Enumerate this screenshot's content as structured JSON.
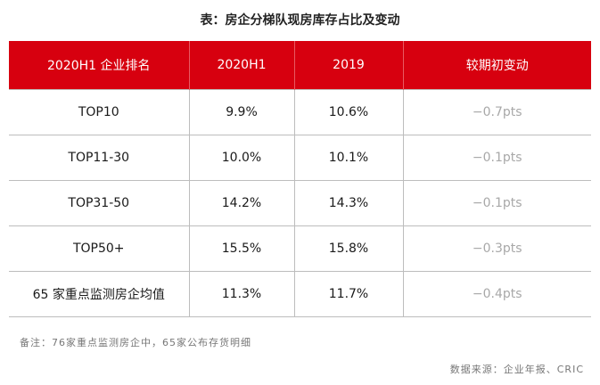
{
  "title": "表：房企分梯队现房库存占比及变动",
  "table": {
    "headers": [
      "2020H1 企业排名",
      "2020H1",
      "2019",
      "较期初变动"
    ],
    "rows": [
      [
        "TOP10",
        "9.9%",
        "10.6%",
        "−0.7pts"
      ],
      [
        "TOP11-30",
        "10.0%",
        "10.1%",
        "−0.1pts"
      ],
      [
        "TOP31-50",
        "14.2%",
        "14.3%",
        "−0.1pts"
      ],
      [
        "TOP50+",
        "15.5%",
        "15.8%",
        "−0.3pts"
      ],
      [
        "65 家重点监测房企均值",
        "11.3%",
        "11.7%",
        "−0.4pts"
      ]
    ]
  },
  "note": "备注：76家重点监测房企中，65家公布存货明细",
  "source": "数据来源：企业年报、CRIC",
  "colors": {
    "header_bg": "#d7000f",
    "header_text": "#ffffff",
    "change_text": "#a8a8a8"
  }
}
